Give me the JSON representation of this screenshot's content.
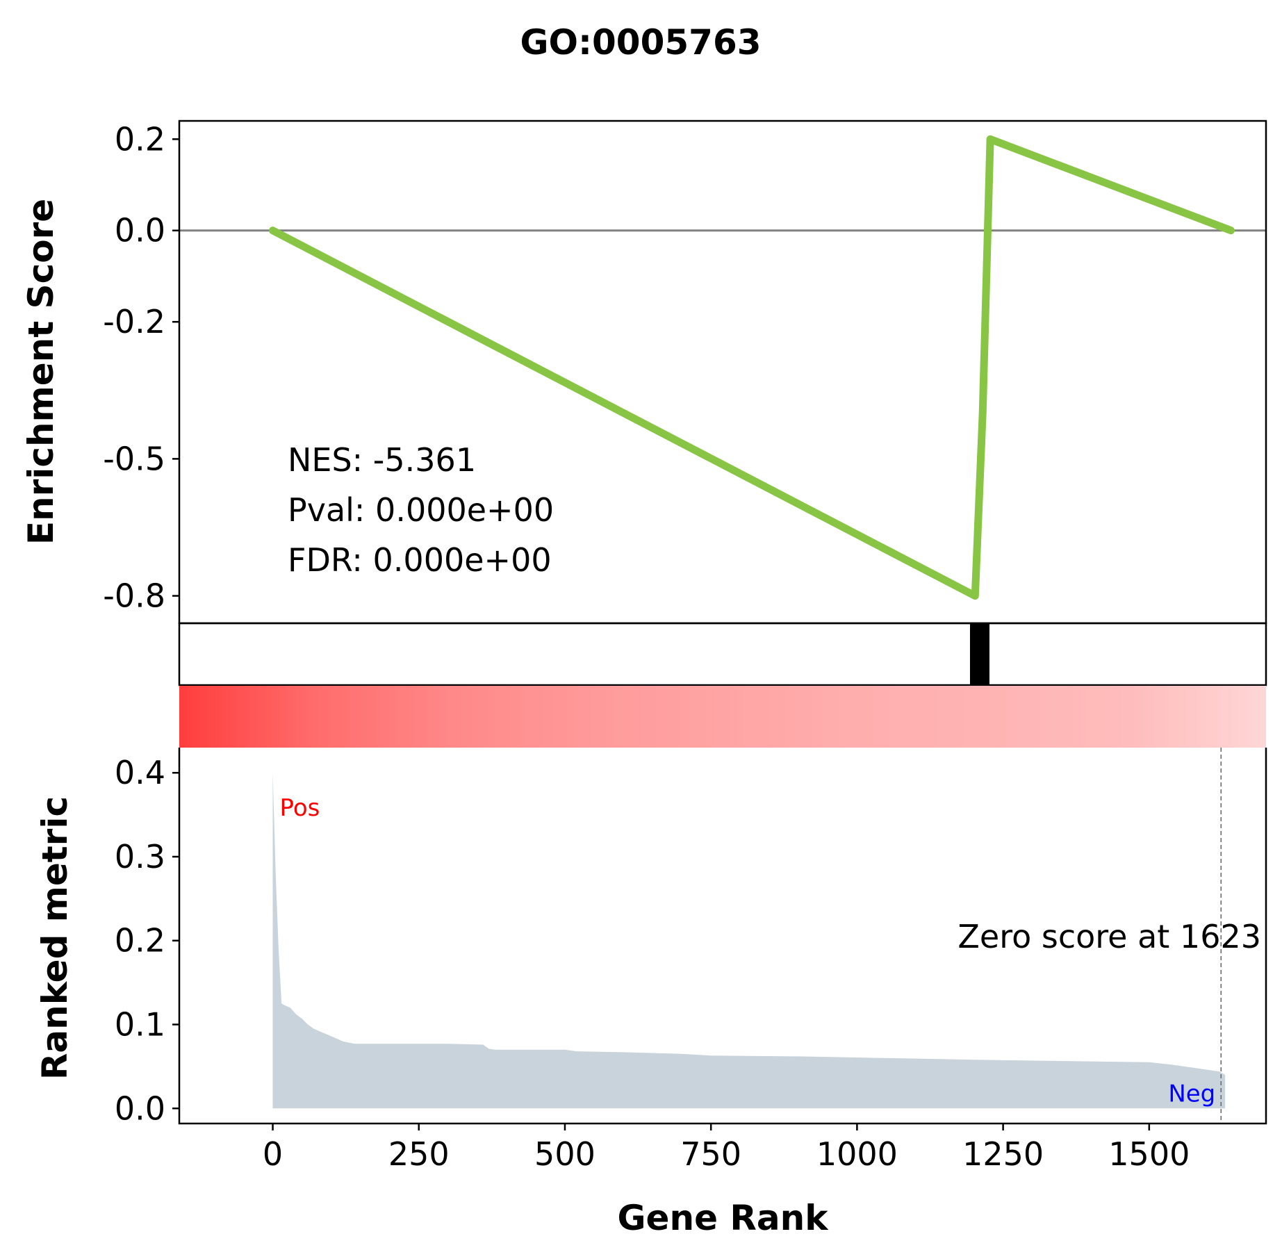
{
  "chart_data": {
    "type": "line",
    "title": "GO:0005763",
    "xlabel": "Gene Rank",
    "ylabel_top": "Enrichment Score",
    "ylabel_bottom": "Ranked metric",
    "xlim": [
      -160,
      1700
    ],
    "x_ticks": [
      0,
      250,
      500,
      750,
      1000,
      1250,
      1500
    ],
    "x_tick_labels": [
      "0",
      "250",
      "500",
      "750",
      "1000",
      "1250",
      "1500"
    ],
    "enrichment": {
      "ylim": [
        -0.86,
        0.24
      ],
      "y_ticks": [
        0.2,
        0.0,
        -0.2,
        -0.5,
        -0.8
      ],
      "y_tick_labels": [
        "0.2",
        "0.0",
        "-0.2",
        "-0.5",
        "-0.8"
      ],
      "color": "#88c544",
      "x": [
        0,
        1202,
        1215,
        1228,
        1640
      ],
      "y": [
        0.0,
        -0.8,
        -0.4,
        0.2,
        0.0
      ],
      "zero_line_color": "#808080"
    },
    "hits": {
      "positions": [
        1210
      ],
      "color": "#000000"
    },
    "ranked_metric": {
      "ylim": [
        -0.018,
        0.43
      ],
      "y_ticks": [
        0.0,
        0.1,
        0.2,
        0.3,
        0.4
      ],
      "y_tick_labels": [
        "0.0",
        "0.1",
        "0.2",
        "0.3",
        "0.4"
      ],
      "fill_color": "#c8d3dc",
      "x": [
        0,
        5,
        10,
        15,
        20,
        30,
        40,
        50,
        60,
        70,
        80,
        90,
        100,
        110,
        120,
        140,
        150,
        200,
        300,
        360,
        370,
        380,
        500,
        520,
        600,
        700,
        750,
        900,
        1050,
        1200,
        1400,
        1500,
        1540,
        1560,
        1580,
        1600,
        1620,
        1630
      ],
      "y": [
        0.4,
        0.28,
        0.19,
        0.125,
        0.123,
        0.12,
        0.112,
        0.107,
        0.1,
        0.095,
        0.092,
        0.089,
        0.086,
        0.083,
        0.08,
        0.077,
        0.077,
        0.077,
        0.077,
        0.076,
        0.071,
        0.07,
        0.07,
        0.068,
        0.067,
        0.065,
        0.063,
        0.062,
        0.06,
        0.058,
        0.056,
        0.055,
        0.052,
        0.05,
        0.048,
        0.046,
        0.044,
        0.04
      ],
      "pos_label": "Pos",
      "neg_label": "Neg",
      "pos_color": "#ff0000",
      "neg_color": "#0000ff",
      "zero_score_x": 1623,
      "zero_score_label": "Zero score at 1623"
    },
    "heatmap": {
      "colors": [
        "#ff3d3d",
        "#ff6c6c",
        "#ff8888",
        "#ff9999",
        "#ffa4a4",
        "#ffaeae",
        "#ffb4b4",
        "#ffbcbc",
        "#ffd6d6"
      ]
    },
    "stats": {
      "nes": "NES: -5.361",
      "pval": "Pval: 0.000e+00",
      "fdr": "FDR: 0.000e+00"
    }
  }
}
